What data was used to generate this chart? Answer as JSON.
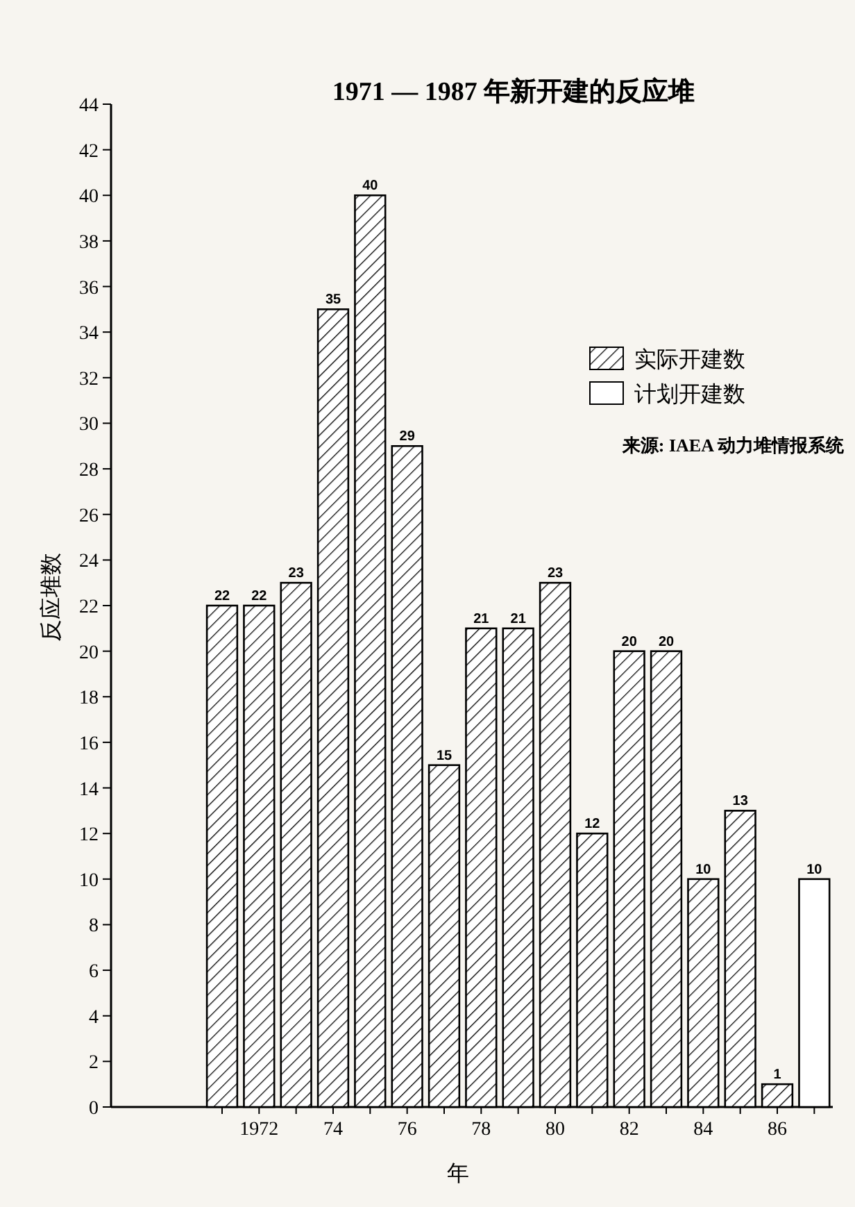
{
  "chart_data": {
    "type": "bar",
    "title": "1971 — 1987 年新开建的反应堆",
    "xlabel": "年",
    "ylabel": "反应堆数",
    "categories": [
      null,
      "1972",
      null,
      "74",
      null,
      "76",
      null,
      "78",
      null,
      "80",
      null,
      "82",
      null,
      "84",
      null,
      "86",
      null
    ],
    "series": [
      {
        "name": "实际开建数",
        "color": "#000000",
        "values": [
          22,
          22,
          23,
          35,
          40,
          29,
          15,
          21,
          21,
          23,
          12,
          20,
          20,
          10,
          13,
          1,
          null
        ]
      },
      {
        "name": "计划开建数",
        "color": "#ffffff",
        "values": [
          null,
          null,
          null,
          null,
          null,
          null,
          null,
          null,
          null,
          null,
          null,
          null,
          null,
          null,
          null,
          null,
          10
        ]
      }
    ],
    "ylim": [
      0,
      44
    ],
    "yticks": [
      0,
      2,
      4,
      6,
      8,
      10,
      12,
      14,
      16,
      18,
      20,
      22,
      24,
      26,
      28,
      30,
      32,
      34,
      36,
      38,
      40,
      42,
      44
    ],
    "data_labels": true,
    "legend": "top right",
    "grid": false,
    "annotations": [
      "来源: IAEA 动力堆情报系统"
    ]
  }
}
